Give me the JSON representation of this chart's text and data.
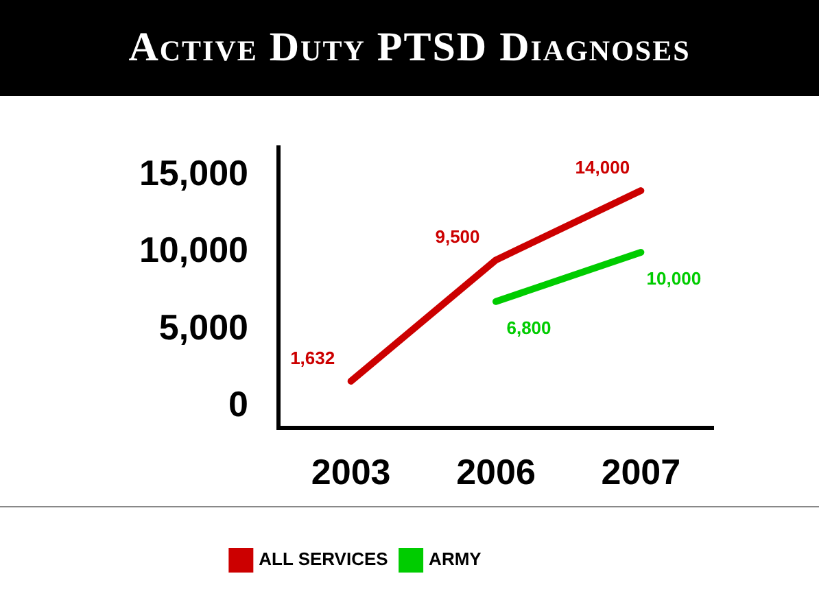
{
  "chart_data": {
    "type": "line",
    "title": "Active Duty PTSD Diagnoses",
    "categories": [
      "2003",
      "2006",
      "2007"
    ],
    "series": [
      {
        "name": "ALL SERVICES",
        "color": "#cc0000",
        "values": [
          1632,
          9500,
          14000
        ],
        "value_labels": [
          "1,632",
          "9,500",
          "14,000"
        ]
      },
      {
        "name": "ARMY",
        "color": "#00cc00",
        "values": [
          null,
          6800,
          10000
        ],
        "value_labels": [
          null,
          "6,800",
          "10,000"
        ]
      }
    ],
    "ylim": [
      -1400,
      16800
    ],
    "yticks": [
      0,
      {
        "value": 5000,
        "label": "5,000"
      },
      {
        "value": 10000,
        "label": "10,000"
      },
      {
        "value": 15000,
        "label": "15,000"
      }
    ],
    "grid": false,
    "legend": "bottom",
    "marker": "none"
  }
}
